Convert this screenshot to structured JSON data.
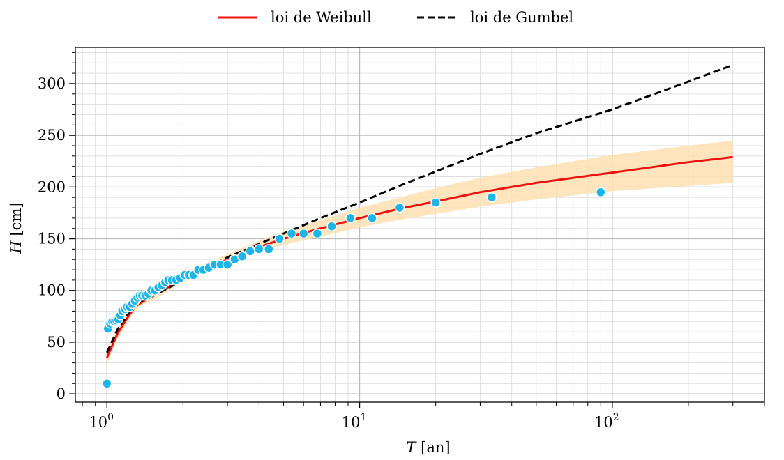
{
  "chart_data": {
    "type": "line",
    "xscale": "log",
    "xlim": [
      0.75,
      400
    ],
    "ylim": [
      -8,
      335
    ],
    "xlabel": {
      "var": "T",
      "unit": "[an]"
    },
    "ylabel": {
      "var": "H",
      "unit": "[cm]"
    },
    "grid": "major and minor",
    "legend_position": "top-center",
    "xticks": [
      {
        "value": 1,
        "base": "10",
        "exp": "0"
      },
      {
        "value": 10,
        "base": "10",
        "exp": "1"
      },
      {
        "value": 100,
        "base": "10",
        "exp": "2"
      }
    ],
    "yticks": [
      {
        "value": 0,
        "label": "0"
      },
      {
        "value": 50,
        "label": "50"
      },
      {
        "value": 100,
        "label": "100"
      },
      {
        "value": 150,
        "label": "150"
      },
      {
        "value": 200,
        "label": "200"
      },
      {
        "value": 250,
        "label": "250"
      },
      {
        "value": 300,
        "label": "300"
      }
    ],
    "series": [
      {
        "name": "loi de Weibull",
        "kind": "line",
        "color": "#ee1111",
        "dash": "solid",
        "x": [
          1.0,
          1.1,
          1.2,
          1.3,
          1.5,
          1.8,
          2.0,
          2.5,
          3.0,
          4.0,
          5.0,
          7.0,
          10.0,
          15.0,
          20.0,
          30.0,
          50.0,
          100.0,
          200.0,
          300.0
        ],
        "y": [
          35,
          58,
          73,
          85,
          94,
          105,
          112,
          122,
          130,
          142,
          150,
          160,
          170,
          180,
          186,
          195,
          204,
          214,
          224,
          229
        ]
      },
      {
        "name": "loi de Gumbel",
        "kind": "line",
        "color": "#000000",
        "dash": "dashed",
        "x": [
          1.0,
          1.1,
          1.2,
          1.3,
          1.5,
          1.8,
          2.0,
          2.5,
          3.0,
          4.0,
          5.0,
          7.0,
          10.0,
          15.0,
          20.0,
          30.0,
          50.0,
          100.0,
          200.0,
          300.0
        ],
        "y": [
          40,
          62,
          76,
          87,
          94,
          104,
          111,
          123,
          132,
          145,
          155,
          170,
          185,
          203,
          215,
          232,
          252,
          275,
          302,
          318
        ]
      },
      {
        "name": "",
        "kind": "band",
        "color": "#ffe0b2",
        "x": [
          1.0,
          1.1,
          1.2,
          1.3,
          1.5,
          1.8,
          2.0,
          2.5,
          3.0,
          4.0,
          5.0,
          7.0,
          10.0,
          15.0,
          20.0,
          30.0,
          50.0,
          100.0,
          200.0,
          300.0
        ],
        "lower": [
          29,
          53,
          68,
          82,
          90,
          101,
          108,
          118,
          126,
          137,
          144,
          152,
          161,
          169,
          174,
          181,
          188,
          196,
          201,
          204
        ],
        "upper": [
          42,
          63,
          78,
          89,
          98,
          109,
          117,
          127,
          135,
          148,
          157,
          168,
          180,
          191,
          199,
          209,
          219,
          231,
          240,
          245
        ]
      },
      {
        "name": "",
        "kind": "scatter",
        "color": "#1eb4e6",
        "x": [
          1.0,
          1.01,
          1.03,
          1.05,
          1.07,
          1.09,
          1.11,
          1.13,
          1.15,
          1.18,
          1.2,
          1.23,
          1.26,
          1.29,
          1.32,
          1.35,
          1.38,
          1.42,
          1.46,
          1.5,
          1.55,
          1.6,
          1.65,
          1.7,
          1.75,
          1.81,
          1.88,
          1.95,
          2.03,
          2.11,
          2.2,
          2.3,
          2.41,
          2.53,
          2.67,
          2.82,
          3.0,
          3.2,
          3.43,
          3.69,
          4.0,
          4.37,
          4.82,
          5.38,
          6.0,
          6.8,
          7.75,
          9.2,
          11.2,
          14.4,
          20.0,
          33.3,
          90.0
        ],
        "y": [
          10,
          63,
          68,
          70,
          70,
          71,
          72,
          76,
          80,
          82,
          84,
          84,
          87,
          90,
          93,
          95,
          95,
          95,
          97,
          100,
          100,
          103,
          105,
          108,
          110,
          110,
          110,
          112,
          115,
          115,
          115,
          120,
          120,
          122,
          125,
          125,
          125,
          130,
          133,
          138,
          140,
          140,
          150,
          155,
          155,
          155,
          162,
          170,
          170,
          180,
          185,
          190,
          195
        ]
      }
    ]
  }
}
